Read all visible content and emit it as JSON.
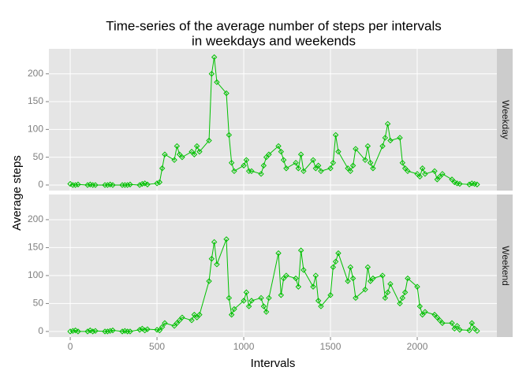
{
  "chart_data": {
    "type": "line",
    "title": [
      "Time-series of the average number of steps per intervals",
      "in weekdays and weekends"
    ],
    "x_label": "Intervals",
    "y_label": "Average steps",
    "x": [
      0,
      15,
      30,
      45,
      100,
      115,
      130,
      145,
      200,
      215,
      230,
      245,
      300,
      315,
      330,
      345,
      400,
      415,
      430,
      445,
      500,
      515,
      530,
      545,
      600,
      615,
      630,
      645,
      700,
      715,
      730,
      745,
      800,
      815,
      830,
      845,
      900,
      915,
      930,
      945,
      1000,
      1015,
      1030,
      1045,
      1100,
      1115,
      1130,
      1145,
      1200,
      1215,
      1230,
      1245,
      1300,
      1315,
      1330,
      1345,
      1400,
      1415,
      1430,
      1445,
      1500,
      1515,
      1530,
      1545,
      1600,
      1615,
      1630,
      1645,
      1700,
      1715,
      1730,
      1745,
      1800,
      1815,
      1830,
      1845,
      1900,
      1915,
      1930,
      1945,
      2000,
      2015,
      2030,
      2045,
      2100,
      2115,
      2130,
      2145,
      2200,
      2215,
      2230,
      2245,
      2300,
      2315,
      2330,
      2345
    ],
    "series": [
      {
        "name": "Weekday",
        "color": "#00c000",
        "values": [
          2,
          0,
          0,
          1,
          0,
          1,
          0,
          0,
          0,
          0,
          1,
          0,
          0,
          0,
          0,
          1,
          0,
          2,
          3,
          1,
          3,
          5,
          30,
          55,
          45,
          70,
          55,
          50,
          60,
          55,
          70,
          60,
          80,
          200,
          230,
          185,
          165,
          90,
          40,
          25,
          35,
          45,
          25,
          25,
          20,
          35,
          50,
          55,
          70,
          60,
          45,
          30,
          40,
          30,
          55,
          25,
          45,
          30,
          35,
          25,
          30,
          40,
          90,
          60,
          30,
          25,
          35,
          65,
          45,
          70,
          40,
          30,
          70,
          85,
          110,
          80,
          85,
          40,
          30,
          25,
          20,
          15,
          30,
          20,
          25,
          10,
          15,
          20,
          10,
          5,
          3,
          2,
          1,
          3,
          2,
          1
        ]
      },
      {
        "name": "Weekend",
        "color": "#00c000",
        "values": [
          0,
          1,
          2,
          0,
          0,
          2,
          0,
          1,
          0,
          0,
          1,
          2,
          0,
          1,
          0,
          0,
          3,
          5,
          2,
          4,
          3,
          2,
          8,
          15,
          10,
          15,
          20,
          25,
          20,
          30,
          25,
          30,
          90,
          130,
          160,
          120,
          165,
          60,
          30,
          40,
          55,
          70,
          45,
          55,
          60,
          45,
          35,
          60,
          140,
          65,
          95,
          100,
          95,
          80,
          145,
          110,
          80,
          100,
          55,
          45,
          65,
          115,
          125,
          140,
          90,
          115,
          95,
          60,
          75,
          115,
          90,
          95,
          100,
          60,
          70,
          85,
          50,
          60,
          70,
          95,
          80,
          45,
          30,
          35,
          30,
          25,
          20,
          15,
          15,
          5,
          10,
          3,
          2,
          15,
          5,
          1
        ]
      }
    ],
    "xlim": [
      -123,
      2459
    ],
    "xticks": [
      0,
      500,
      1000,
      1500,
      2000
    ],
    "ylim": [
      -10,
      245
    ],
    "yticks": [
      0,
      50,
      100,
      150,
      200
    ],
    "grid": true,
    "facet": "rows"
  }
}
